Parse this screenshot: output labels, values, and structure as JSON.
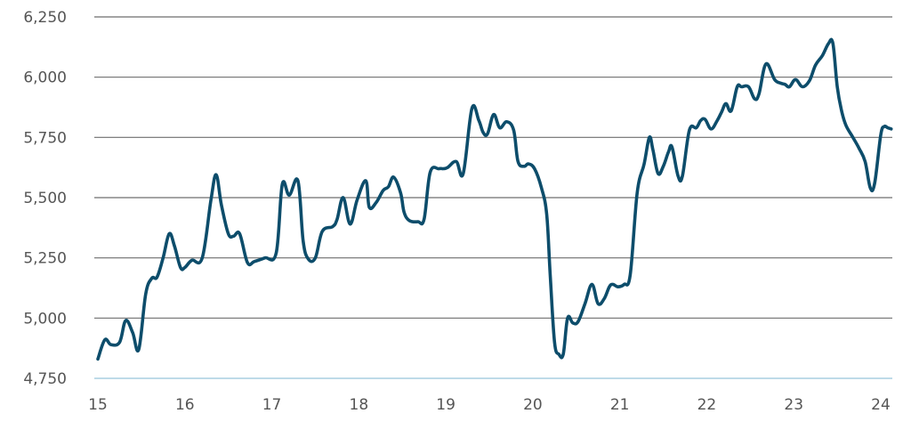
{
  "chart_data": {
    "type": "line",
    "title": "",
    "xlabel": "",
    "ylabel": "",
    "xlim": [
      15,
      24.12
    ],
    "ylim": [
      4750,
      6250
    ],
    "yticks": [
      4750,
      5000,
      5250,
      5500,
      5750,
      6000,
      6250
    ],
    "ytick_labels": [
      "4,750",
      "5,000",
      "5,250",
      "5,500",
      "5,750",
      "6,000",
      "6,250"
    ],
    "xticks": [
      15,
      16,
      17,
      18,
      19,
      20,
      21,
      22,
      23,
      24
    ],
    "xtick_labels": [
      "15",
      "16",
      "17",
      "18",
      "19",
      "20",
      "21",
      "22",
      "23",
      "24"
    ],
    "grid": "horizontal",
    "legend": "none",
    "line_color": "#0d4d6b",
    "series": [
      {
        "x": [
          15.0,
          15.08,
          15.15,
          15.25,
          15.32,
          15.4,
          15.47,
          15.55,
          15.62,
          15.68,
          15.75,
          15.82,
          15.88,
          15.95,
          16.0,
          16.08,
          16.2,
          16.3,
          16.36,
          16.42,
          16.5,
          16.56,
          16.63,
          16.72,
          16.8,
          16.92,
          17.05,
          17.12,
          17.2,
          17.3,
          17.36,
          17.42,
          17.5,
          17.58,
          17.7,
          17.75,
          17.82,
          17.9,
          17.98,
          18.08,
          18.12,
          18.2,
          18.28,
          18.34,
          18.4,
          18.48,
          18.52,
          18.58,
          18.68,
          18.75,
          18.82,
          18.92,
          18.97,
          19.02,
          19.12,
          19.2,
          19.3,
          19.38,
          19.43,
          19.48,
          19.55,
          19.62,
          19.7,
          19.78,
          19.83,
          19.9,
          19.95,
          20.02,
          20.1,
          20.16,
          20.2,
          20.25,
          20.3,
          20.35,
          20.4,
          20.46,
          20.52,
          20.6,
          20.68,
          20.75,
          20.82,
          20.88,
          20.92,
          20.98,
          21.05,
          21.12,
          21.2,
          21.28,
          21.34,
          21.38,
          21.44,
          21.5,
          21.56,
          21.6,
          21.67,
          21.72,
          21.8,
          21.88,
          21.93,
          21.98,
          22.05,
          22.12,
          22.17,
          22.22,
          22.28,
          22.35,
          22.4,
          22.48,
          22.55,
          22.6,
          22.68,
          22.78,
          22.85,
          22.9,
          22.95,
          23.02,
          23.1,
          23.18,
          23.25,
          23.33,
          23.4,
          23.45,
          23.5,
          23.55,
          23.6,
          23.68,
          23.75,
          23.82,
          23.88,
          23.93,
          24.0,
          24.04,
          24.08,
          24.12
        ],
        "values": [
          4830,
          4910,
          4890,
          4900,
          4990,
          4940,
          4870,
          5100,
          5165,
          5170,
          5250,
          5350,
          5300,
          5210,
          5210,
          5240,
          5250,
          5490,
          5595,
          5470,
          5350,
          5340,
          5350,
          5230,
          5235,
          5250,
          5270,
          5555,
          5510,
          5570,
          5320,
          5245,
          5250,
          5360,
          5380,
          5410,
          5500,
          5390,
          5490,
          5570,
          5460,
          5480,
          5530,
          5545,
          5585,
          5520,
          5440,
          5405,
          5400,
          5410,
          5605,
          5620,
          5620,
          5625,
          5650,
          5600,
          5870,
          5820,
          5770,
          5765,
          5845,
          5790,
          5815,
          5780,
          5650,
          5630,
          5640,
          5620,
          5540,
          5430,
          5180,
          4900,
          4850,
          4850,
          5000,
          4980,
          4985,
          5060,
          5140,
          5060,
          5080,
          5130,
          5140,
          5130,
          5140,
          5180,
          5520,
          5640,
          5750,
          5700,
          5600,
          5630,
          5690,
          5710,
          5590,
          5590,
          5780,
          5790,
          5820,
          5825,
          5785,
          5820,
          5855,
          5890,
          5860,
          5960,
          5960,
          5960,
          5910,
          5930,
          6055,
          5990,
          5975,
          5970,
          5960,
          5990,
          5960,
          5985,
          6050,
          6090,
          6140,
          6140,
          5960,
          5860,
          5800,
          5750,
          5705,
          5650,
          5540,
          5560,
          5760,
          5795,
          5790,
          5785
        ]
      }
    ]
  }
}
